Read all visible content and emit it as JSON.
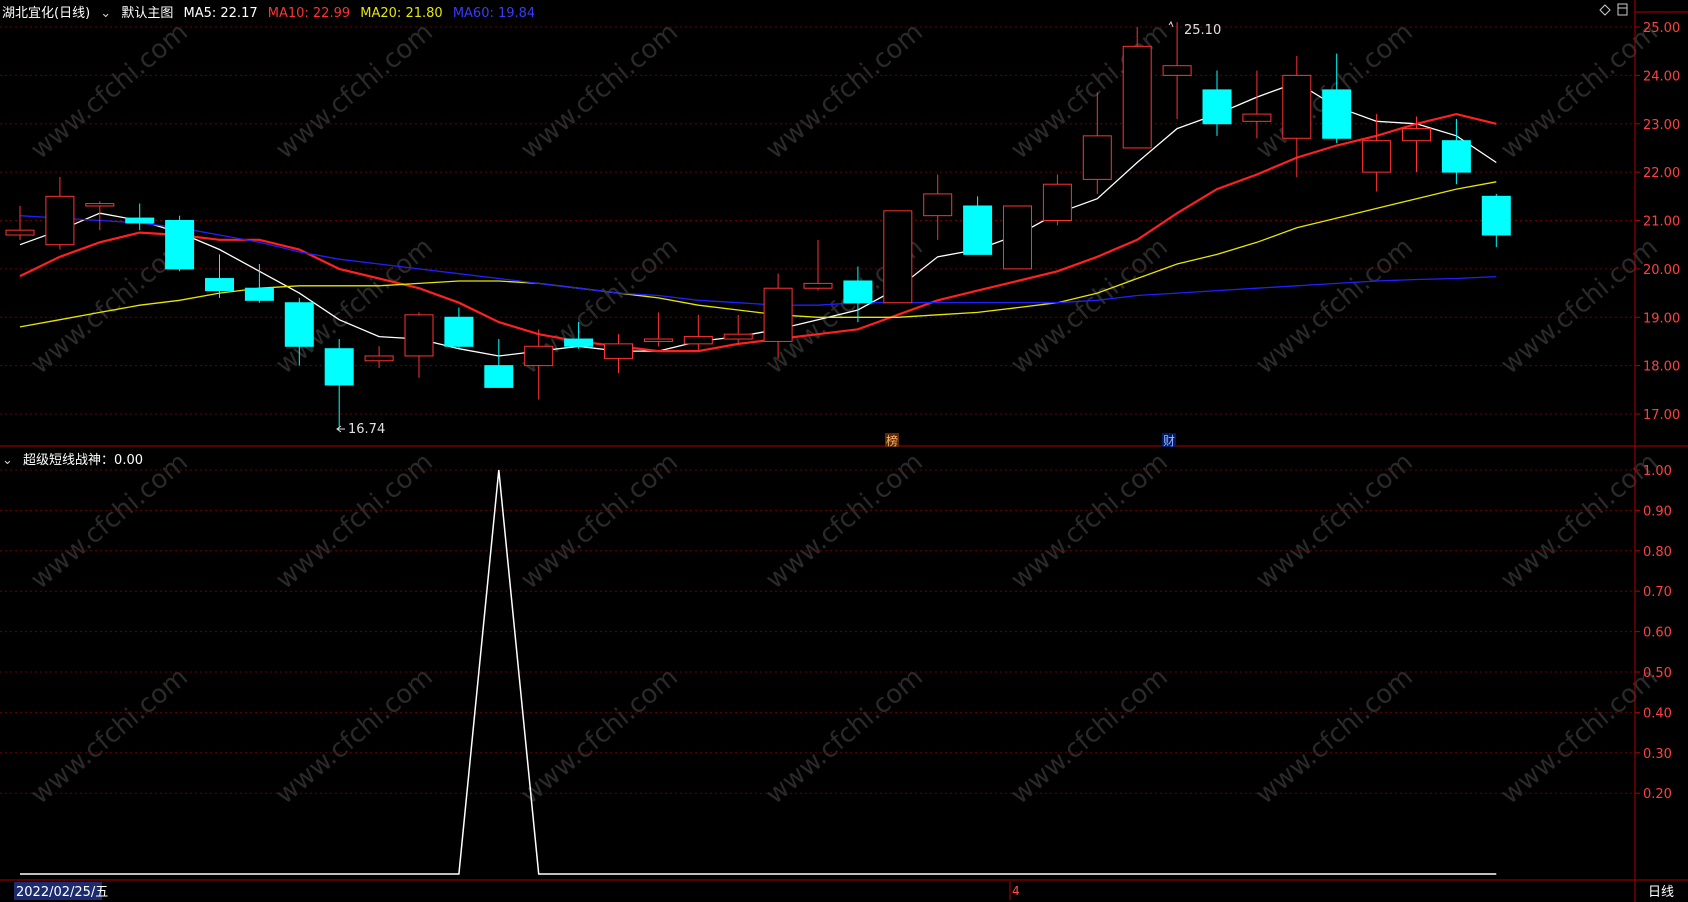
{
  "header": {
    "title": "湖北宜化(日线)",
    "main_chart_label": "默认主图",
    "ma5_label": "MA5: 22.17",
    "ma10_label": "MA10: 22.99",
    "ma20_label": "MA20: 21.80",
    "ma60_label": "MA60: 19.84"
  },
  "indicator_header": {
    "label": "超级短线战神：0.00"
  },
  "footer": {
    "date_label": "2022/02/25/五",
    "month_marker": "4",
    "period_label": "日线"
  },
  "markers": {
    "bang": "榜",
    "cai": "财"
  },
  "annotations": {
    "high_label": "25.10",
    "low_label": "16.74"
  },
  "watermark": "www.cfchi.com",
  "colors": {
    "up": "#ff3232",
    "down": "#00ffff",
    "ma5": "#ffffff",
    "ma10": "#ff2020",
    "ma20": "#e6e600",
    "ma60": "#2020ff",
    "axis": "#b00000",
    "indicator": "#ffffff"
  },
  "chart_data": [
    {
      "type": "candlestick",
      "title": "湖北宜化(日线)",
      "ylim": [
        16.6,
        25.2
      ],
      "yticks": [
        "17.00",
        "18.00",
        "19.00",
        "20.00",
        "21.00",
        "22.00",
        "23.00",
        "24.00",
        "25.00"
      ],
      "candles": [
        {
          "o": 20.7,
          "h": 21.3,
          "l": 20.6,
          "c": 20.8
        },
        {
          "o": 20.5,
          "h": 21.9,
          "l": 20.4,
          "c": 21.5
        },
        {
          "o": 21.3,
          "h": 21.4,
          "l": 20.8,
          "c": 21.35
        },
        {
          "o": 21.05,
          "h": 21.35,
          "l": 20.8,
          "c": 20.95
        },
        {
          "o": 21.0,
          "h": 21.1,
          "l": 19.95,
          "c": 20.0
        },
        {
          "o": 19.8,
          "h": 20.3,
          "l": 19.4,
          "c": 19.55
        },
        {
          "o": 19.6,
          "h": 20.1,
          "l": 19.3,
          "c": 19.35
        },
        {
          "o": 19.3,
          "h": 19.4,
          "l": 18.0,
          "c": 18.4
        },
        {
          "o": 18.35,
          "h": 18.55,
          "l": 16.74,
          "c": 17.6
        },
        {
          "o": 18.1,
          "h": 18.4,
          "l": 17.95,
          "c": 18.2
        },
        {
          "o": 18.2,
          "h": 19.1,
          "l": 17.75,
          "c": 19.05
        },
        {
          "o": 19.0,
          "h": 19.2,
          "l": 18.35,
          "c": 18.4
        },
        {
          "o": 18.0,
          "h": 18.55,
          "l": 17.55,
          "c": 17.55
        },
        {
          "o": 18.0,
          "h": 18.75,
          "l": 17.3,
          "c": 18.4
        },
        {
          "o": 18.55,
          "h": 18.9,
          "l": 18.35,
          "c": 18.4
        },
        {
          "o": 18.15,
          "h": 18.65,
          "l": 17.85,
          "c": 18.45
        },
        {
          "o": 18.5,
          "h": 19.1,
          "l": 18.4,
          "c": 18.55
        },
        {
          "o": 18.45,
          "h": 19.05,
          "l": 18.3,
          "c": 18.6
        },
        {
          "o": 18.55,
          "h": 19.05,
          "l": 18.45,
          "c": 18.65
        },
        {
          "o": 18.5,
          "h": 19.9,
          "l": 18.15,
          "c": 19.6
        },
        {
          "o": 19.6,
          "h": 20.6,
          "l": 19.55,
          "c": 19.7
        },
        {
          "o": 19.75,
          "h": 20.05,
          "l": 18.9,
          "c": 19.3
        },
        {
          "o": 19.3,
          "h": 21.2,
          "l": 19.3,
          "c": 21.2
        },
        {
          "o": 21.1,
          "h": 21.95,
          "l": 20.6,
          "c": 21.55
        },
        {
          "o": 21.3,
          "h": 21.5,
          "l": 20.3,
          "c": 20.3
        },
        {
          "o": 20.0,
          "h": 21.3,
          "l": 20.0,
          "c": 21.3
        },
        {
          "o": 21.0,
          "h": 21.95,
          "l": 20.9,
          "c": 21.75
        },
        {
          "o": 21.85,
          "h": 23.65,
          "l": 21.55,
          "c": 22.75
        },
        {
          "o": 22.5,
          "h": 25.0,
          "l": 22.5,
          "c": 24.6
        },
        {
          "o": 24.0,
          "h": 25.1,
          "l": 23.1,
          "c": 24.2
        },
        {
          "o": 23.7,
          "h": 24.1,
          "l": 22.75,
          "c": 23.0
        },
        {
          "o": 23.05,
          "h": 24.1,
          "l": 22.7,
          "c": 23.2
        },
        {
          "o": 22.7,
          "h": 24.4,
          "l": 21.9,
          "c": 24.0
        },
        {
          "o": 23.7,
          "h": 24.45,
          "l": 22.6,
          "c": 22.7
        },
        {
          "o": 22.0,
          "h": 23.2,
          "l": 21.6,
          "c": 22.65
        },
        {
          "o": 22.65,
          "h": 23.15,
          "l": 22.0,
          "c": 22.9
        },
        {
          "o": 22.65,
          "h": 23.1,
          "l": 21.75,
          "c": 22.0
        },
        {
          "o": 21.5,
          "h": 21.55,
          "l": 20.45,
          "c": 20.7
        }
      ],
      "series": [
        {
          "name": "MA5",
          "values": [
            20.5,
            20.8,
            21.15,
            21.0,
            20.75,
            20.4,
            19.95,
            19.5,
            18.95,
            18.6,
            18.55,
            18.35,
            18.2,
            18.3,
            18.4,
            18.3,
            18.3,
            18.5,
            18.6,
            18.75,
            18.95,
            19.15,
            19.6,
            20.25,
            20.4,
            20.7,
            21.15,
            21.45,
            22.2,
            22.9,
            23.2,
            23.55,
            23.85,
            23.35,
            23.05,
            23.0,
            22.75,
            22.2
          ]
        },
        {
          "name": "MA10",
          "values": [
            19.85,
            20.25,
            20.55,
            20.75,
            20.7,
            20.6,
            20.6,
            20.4,
            20.0,
            19.8,
            19.6,
            19.3,
            18.9,
            18.65,
            18.5,
            18.4,
            18.3,
            18.3,
            18.45,
            18.55,
            18.65,
            18.75,
            19.05,
            19.35,
            19.55,
            19.75,
            19.95,
            20.25,
            20.6,
            21.15,
            21.65,
            21.95,
            22.3,
            22.55,
            22.75,
            23.0,
            23.2,
            23.0
          ]
        },
        {
          "name": "MA20",
          "values": [
            18.8,
            18.95,
            19.1,
            19.25,
            19.35,
            19.5,
            19.6,
            19.65,
            19.65,
            19.65,
            19.7,
            19.75,
            19.75,
            19.7,
            19.6,
            19.5,
            19.4,
            19.25,
            19.15,
            19.05,
            19.0,
            19.0,
            19.0,
            19.05,
            19.1,
            19.2,
            19.3,
            19.5,
            19.8,
            20.1,
            20.3,
            20.55,
            20.85,
            21.05,
            21.25,
            21.45,
            21.65,
            21.8
          ]
        },
        {
          "name": "MA60",
          "values": [
            21.1,
            21.05,
            21.0,
            20.95,
            20.85,
            20.7,
            20.55,
            20.35,
            20.2,
            20.1,
            20.0,
            19.9,
            19.8,
            19.7,
            19.6,
            19.5,
            19.45,
            19.35,
            19.3,
            19.25,
            19.25,
            19.3,
            19.3,
            19.3,
            19.3,
            19.3,
            19.3,
            19.35,
            19.45,
            19.5,
            19.55,
            19.6,
            19.65,
            19.7,
            19.75,
            19.78,
            19.8,
            19.84
          ]
        }
      ]
    },
    {
      "type": "line",
      "title": "超级短线战神",
      "ylim": [
        0,
        1.05
      ],
      "yticks": [
        "0.20",
        "0.30",
        "0.40",
        "0.50",
        "0.60",
        "0.70",
        "0.80",
        "0.90",
        "1.00"
      ],
      "series": [
        {
          "name": "超级短线战神",
          "values": [
            0,
            0,
            0,
            0,
            0,
            0,
            0,
            0,
            0,
            0,
            0,
            0,
            1,
            0,
            0,
            0,
            0,
            0,
            0,
            0,
            0,
            0,
            0,
            0,
            0,
            0,
            0,
            0,
            0,
            0,
            0,
            0,
            0,
            0,
            0,
            0,
            0,
            0
          ]
        }
      ]
    }
  ]
}
